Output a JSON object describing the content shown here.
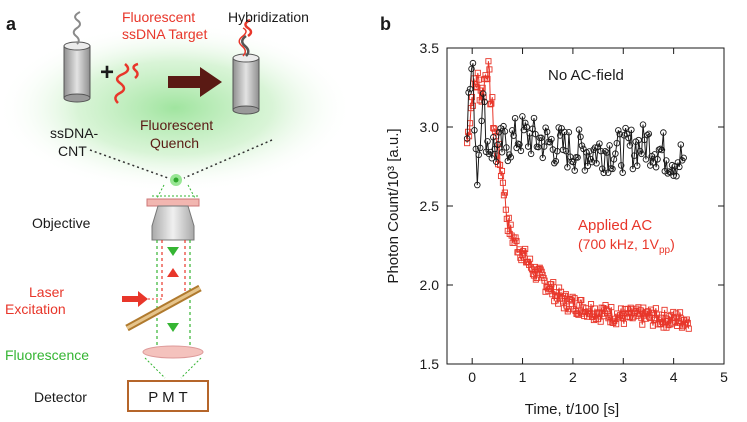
{
  "panel_a": {
    "letter": "a",
    "target_label_1": "Fluorescent",
    "target_label_2": "ssDNA Target",
    "hybridization": "Hybridization",
    "plus": "+",
    "cnt_label_1": "ssDNA-",
    "cnt_label_2": "CNT",
    "quench_1": "Fluorescent",
    "quench_2": "Quench",
    "objective": "Objective",
    "laser_1": "Laser",
    "laser_2": "Excitation",
    "fluorescence": "Fluorescence",
    "detector": "Detector",
    "pmt": "P M T"
  },
  "panel_b": {
    "letter": "b",
    "annot_no_ac": "No AC-field",
    "annot_applied": "Applied AC",
    "annot_params_pre": "(700 kHz, 1V",
    "annot_params_sub": "pp",
    "annot_params_post": ")",
    "ylabel": "Photon Count/10³ [a.u.]",
    "xlabel": "Time, t/100 [s]"
  },
  "colors": {
    "red": "#e8362a",
    "black": "#1a1a1a",
    "green": "#35b533",
    "brown": "#5a1a14",
    "detector_box": "#b5652a"
  },
  "chart_data": {
    "type": "line",
    "xlim": [
      -0.5,
      5
    ],
    "ylim": [
      1.5,
      3.5
    ],
    "xticks": [
      0,
      1,
      2,
      3,
      4,
      5
    ],
    "yticks": [
      1.5,
      2.0,
      2.5,
      3.0,
      3.5
    ],
    "grid": false,
    "series": [
      {
        "name": "No AC-field",
        "color": "#1a1a1a",
        "marker": "circle",
        "x": [
          -0.1,
          0.0,
          0.1,
          0.2,
          0.3,
          0.5,
          0.7,
          1.0,
          1.5,
          2.0,
          2.5,
          3.0,
          3.5,
          4.0,
          4.2
        ],
        "y": [
          3.05,
          3.4,
          2.7,
          3.2,
          2.9,
          2.85,
          2.9,
          2.95,
          2.9,
          2.85,
          2.85,
          2.85,
          2.9,
          2.8,
          2.8
        ]
      },
      {
        "name": "Applied AC (700 kHz, 1Vpp)",
        "color": "#e8362a",
        "marker": "square",
        "x": [
          -0.1,
          0.0,
          0.1,
          0.2,
          0.3,
          0.4,
          0.5,
          0.6,
          0.7,
          0.8,
          1.0,
          1.2,
          1.5,
          1.8,
          2.0,
          2.5,
          3.0,
          3.5,
          4.0,
          4.3
        ],
        "y": [
          2.9,
          3.2,
          3.3,
          3.2,
          3.4,
          3.1,
          2.85,
          2.7,
          2.4,
          2.3,
          2.2,
          2.1,
          2.0,
          1.9,
          1.88,
          1.83,
          1.8,
          1.8,
          1.78,
          1.78
        ]
      }
    ]
  }
}
